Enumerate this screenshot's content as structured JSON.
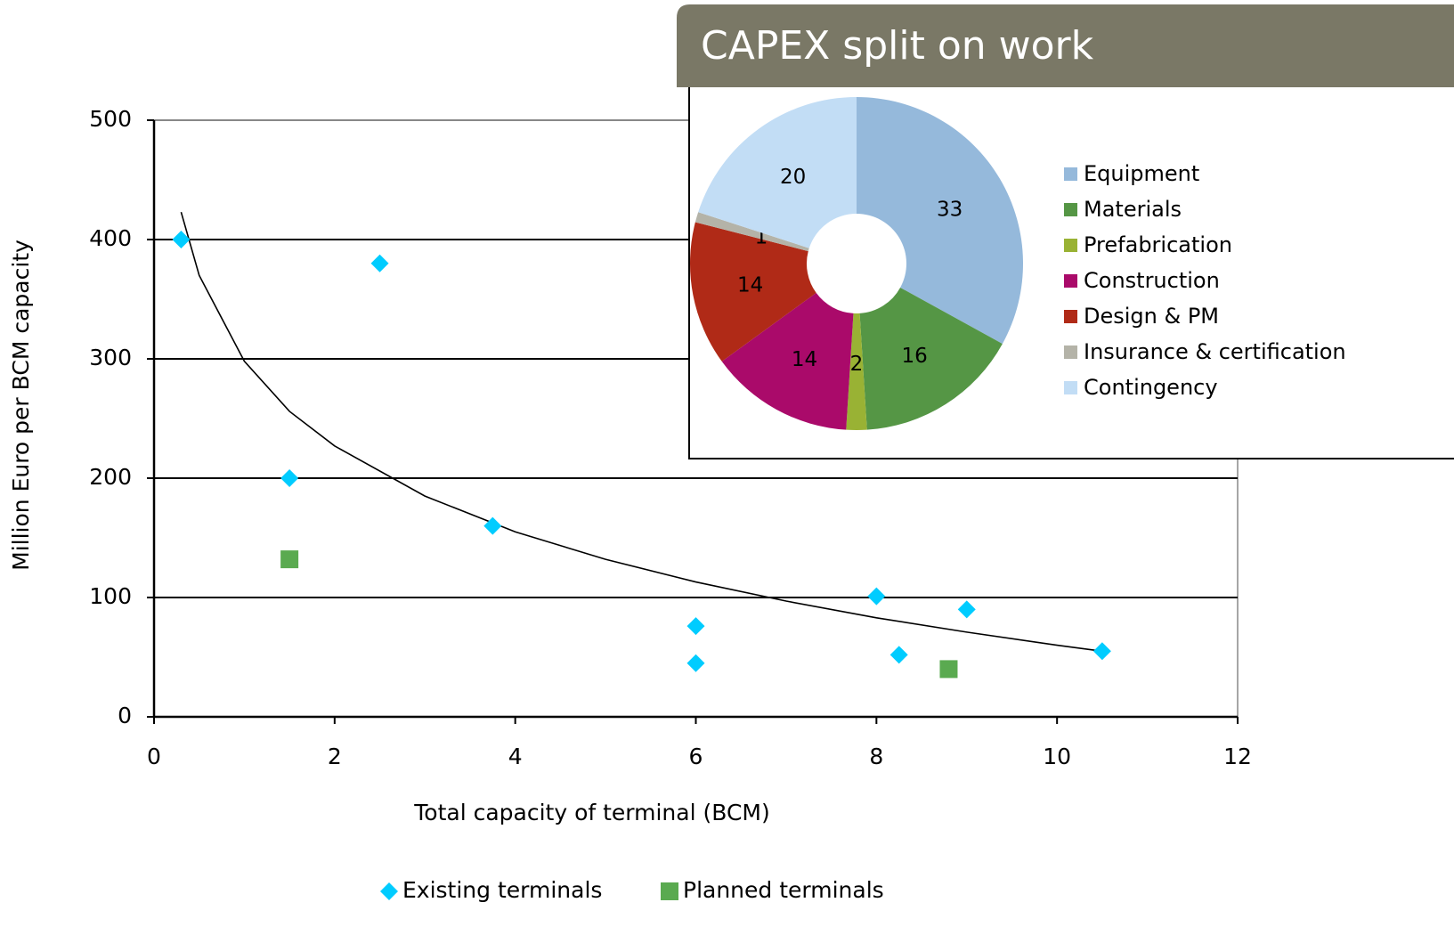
{
  "chart_data": [
    {
      "type": "scatter",
      "x_label": "Total capacity  of terminal  (BCM)",
      "y_label": "Million  Euro per BCM capacity",
      "xlim": [
        0,
        12
      ],
      "xticks": [
        0,
        2,
        4,
        6,
        8,
        10,
        12
      ],
      "ylim": [
        0,
        500
      ],
      "yticks": [
        0,
        100,
        200,
        300,
        400,
        500
      ],
      "grid": true,
      "legend": "bottom",
      "series": [
        {
          "name": "Existing terminals",
          "color": "#00ccff",
          "marker": "diamond",
          "x": [
            0.3,
            2.5,
            1.5,
            3.75,
            6,
            6,
            8,
            8.25,
            9,
            10.5
          ],
          "values": [
            400,
            380,
            200,
            160,
            76,
            45,
            101,
            52,
            90,
            55
          ]
        },
        {
          "name": "Planned terminals",
          "color": "#5aaa50",
          "marker": "square",
          "x": [
            1.5,
            8.8
          ],
          "values": [
            132,
            40
          ]
        }
      ],
      "trendline": {
        "color": "#000000",
        "x": [
          0.3,
          0.5,
          1,
          1.5,
          2,
          3,
          4,
          5,
          6,
          7,
          8,
          9,
          10,
          10.5
        ],
        "values": [
          423,
          370,
          298,
          256,
          227,
          185,
          155,
          132,
          113,
          97,
          83,
          71,
          60,
          55
        ]
      }
    },
    {
      "type": "pie",
      "donut": true,
      "title": "CAPEX split on work",
      "categories": [
        "Equipment",
        "Materials",
        "Prefabrication",
        "Construction",
        "Design & PM",
        "Insurance & certification",
        "Contingency"
      ],
      "values": [
        33,
        16,
        2,
        14,
        14,
        1,
        20
      ],
      "colors": [
        "#95b9db",
        "#559645",
        "#99b234",
        "#aa0a6a",
        "#b02a17",
        "#b4b3a8",
        "#c2ddf5"
      ]
    }
  ]
}
